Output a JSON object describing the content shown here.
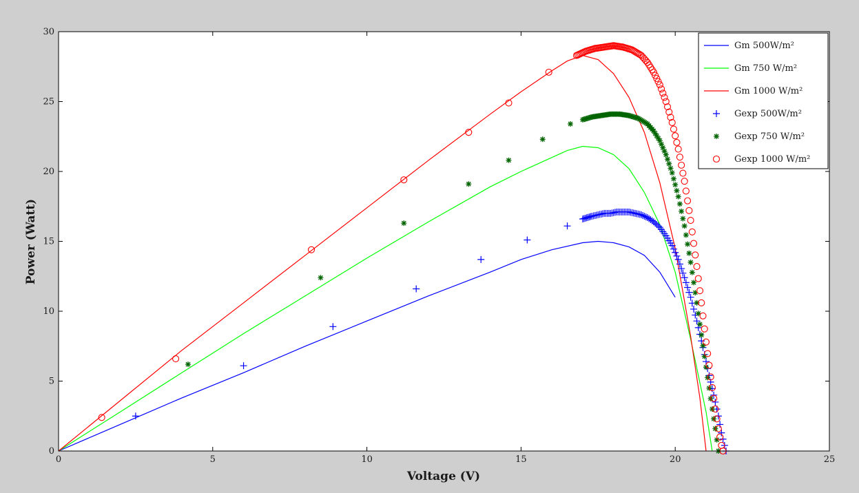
{
  "colors": {
    "figure_background": "#cfcfcf",
    "axes_background": "#ffffff",
    "blue": "#0000ff",
    "green": "#00ff00",
    "red": "#ff0000",
    "dark_green": "#006400"
  },
  "chart_data": {
    "type": "line",
    "xlabel": "Voltage (V)",
    "ylabel": "Power (Watt)",
    "xlim": [
      0,
      25
    ],
    "ylim": [
      0,
      30
    ],
    "xticks": [
      0,
      5,
      10,
      15,
      20,
      25
    ],
    "yticks": [
      0,
      5,
      10,
      15,
      20,
      25,
      30
    ],
    "grid": false,
    "legend_position": "top-right",
    "series": [
      {
        "name": "Gm 500W/m²",
        "kind": "line",
        "color": "blue",
        "points": [
          [
            0,
            0
          ],
          [
            2,
            1.9
          ],
          [
            4,
            3.8
          ],
          [
            6,
            5.6
          ],
          [
            8,
            7.5
          ],
          [
            10,
            9.3
          ],
          [
            12,
            11.1
          ],
          [
            14,
            12.8
          ],
          [
            15,
            13.7
          ],
          [
            16,
            14.4
          ],
          [
            17,
            14.9
          ],
          [
            17.5,
            15.0
          ],
          [
            18,
            14.9
          ],
          [
            18.5,
            14.6
          ],
          [
            19,
            14.0
          ],
          [
            19.5,
            12.8
          ],
          [
            20,
            11.0
          ]
        ]
      },
      {
        "name": "Gm 750 W/m²",
        "kind": "line",
        "color": "green",
        "points": [
          [
            0,
            0
          ],
          [
            2,
            2.8
          ],
          [
            4,
            5.6
          ],
          [
            6,
            8.4
          ],
          [
            8,
            11.1
          ],
          [
            10,
            13.8
          ],
          [
            12,
            16.4
          ],
          [
            14,
            18.9
          ],
          [
            15,
            20.0
          ],
          [
            16,
            21.0
          ],
          [
            16.5,
            21.5
          ],
          [
            17,
            21.8
          ],
          [
            17.5,
            21.7
          ],
          [
            18,
            21.2
          ],
          [
            18.5,
            20.2
          ],
          [
            19,
            18.5
          ],
          [
            19.5,
            16.2
          ],
          [
            20,
            12.8
          ],
          [
            20.5,
            8.0
          ],
          [
            21,
            2.8
          ],
          [
            21.2,
            0
          ]
        ]
      },
      {
        "name": "Gm 1000 W/m²",
        "kind": "line",
        "color": "red",
        "points": [
          [
            0,
            0
          ],
          [
            2,
            3.6
          ],
          [
            4,
            7.2
          ],
          [
            6,
            10.6
          ],
          [
            8,
            14.0
          ],
          [
            10,
            17.4
          ],
          [
            12,
            20.8
          ],
          [
            14,
            24.1
          ],
          [
            15,
            25.7
          ],
          [
            16,
            27.2
          ],
          [
            16.5,
            27.9
          ],
          [
            17,
            28.3
          ],
          [
            17.5,
            28.0
          ],
          [
            18,
            27.0
          ],
          [
            18.5,
            25.3
          ],
          [
            19,
            22.8
          ],
          [
            19.5,
            19.2
          ],
          [
            20,
            14.5
          ],
          [
            20.5,
            8.2
          ],
          [
            20.8,
            3.8
          ],
          [
            21,
            0
          ]
        ]
      },
      {
        "name": "Gexp 500W/m²",
        "kind": "marker",
        "marker": "plus",
        "color": "blue",
        "points": [
          [
            2.5,
            2.5
          ],
          [
            6.0,
            6.1
          ],
          [
            8.9,
            8.9
          ],
          [
            11.6,
            11.6
          ],
          [
            13.7,
            13.7
          ],
          [
            15.2,
            15.1
          ],
          [
            16.5,
            16.1
          ],
          [
            17.0,
            16.6
          ],
          [
            17.3,
            16.8
          ],
          [
            17.5,
            16.9
          ],
          [
            17.7,
            17.0
          ],
          [
            17.9,
            17.0
          ],
          [
            18.1,
            17.1
          ],
          [
            18.3,
            17.1
          ],
          [
            18.5,
            17.1
          ],
          [
            18.7,
            17.0
          ],
          [
            18.9,
            16.9
          ],
          [
            19.1,
            16.7
          ],
          [
            19.3,
            16.4
          ],
          [
            19.5,
            16.0
          ],
          [
            19.7,
            15.4
          ],
          [
            19.9,
            14.7
          ],
          [
            20.1,
            13.7
          ],
          [
            20.3,
            12.4
          ],
          [
            20.5,
            11.0
          ],
          [
            20.7,
            9.3
          ],
          [
            20.9,
            7.4
          ],
          [
            21.1,
            5.4
          ],
          [
            21.25,
            4.0
          ],
          [
            21.4,
            2.5
          ],
          [
            21.5,
            1.3
          ],
          [
            21.6,
            0.4
          ],
          [
            21.65,
            0
          ]
        ]
      },
      {
        "name": "Gexp 750 W/m²",
        "kind": "marker",
        "marker": "asterisk",
        "color": "dark_green",
        "points": [
          [
            4.2,
            6.2
          ],
          [
            8.5,
            12.4
          ],
          [
            11.2,
            16.3
          ],
          [
            13.3,
            19.1
          ],
          [
            14.6,
            20.8
          ],
          [
            15.7,
            22.3
          ],
          [
            16.6,
            23.4
          ],
          [
            17.0,
            23.7
          ],
          [
            17.3,
            23.9
          ],
          [
            17.6,
            24.0
          ],
          [
            17.9,
            24.1
          ],
          [
            18.2,
            24.1
          ],
          [
            18.5,
            24.0
          ],
          [
            18.8,
            23.8
          ],
          [
            19.1,
            23.4
          ],
          [
            19.3,
            22.9
          ],
          [
            19.5,
            22.2
          ],
          [
            19.7,
            21.2
          ],
          [
            19.9,
            19.9
          ],
          [
            20.1,
            18.2
          ],
          [
            20.3,
            16.1
          ],
          [
            20.5,
            13.5
          ],
          [
            20.7,
            10.6
          ],
          [
            20.85,
            8.3
          ],
          [
            21.0,
            6.0
          ],
          [
            21.1,
            4.5
          ],
          [
            21.2,
            3.0
          ],
          [
            21.3,
            1.6
          ],
          [
            21.35,
            0.8
          ],
          [
            21.4,
            0
          ]
        ]
      },
      {
        "name": "Gexp 1000 W/m²",
        "kind": "marker",
        "marker": "circle",
        "color": "red",
        "points": [
          [
            1.4,
            2.4
          ],
          [
            3.8,
            6.6
          ],
          [
            8.2,
            14.4
          ],
          [
            11.2,
            19.4
          ],
          [
            13.3,
            22.8
          ],
          [
            14.6,
            24.9
          ],
          [
            15.9,
            27.1
          ],
          [
            16.8,
            28.3
          ],
          [
            17.1,
            28.6
          ],
          [
            17.4,
            28.8
          ],
          [
            17.7,
            28.9
          ],
          [
            18.0,
            29.0
          ],
          [
            18.3,
            28.9
          ],
          [
            18.6,
            28.7
          ],
          [
            18.9,
            28.3
          ],
          [
            19.1,
            27.8
          ],
          [
            19.3,
            27.1
          ],
          [
            19.5,
            26.2
          ],
          [
            19.7,
            25.0
          ],
          [
            19.9,
            23.5
          ],
          [
            20.1,
            21.6
          ],
          [
            20.3,
            19.3
          ],
          [
            20.5,
            16.5
          ],
          [
            20.7,
            13.2
          ],
          [
            20.85,
            10.6
          ],
          [
            21.0,
            7.8
          ],
          [
            21.15,
            5.3
          ],
          [
            21.3,
            3.0
          ],
          [
            21.4,
            1.6
          ],
          [
            21.5,
            0.4
          ],
          [
            21.55,
            0
          ]
        ]
      }
    ]
  }
}
